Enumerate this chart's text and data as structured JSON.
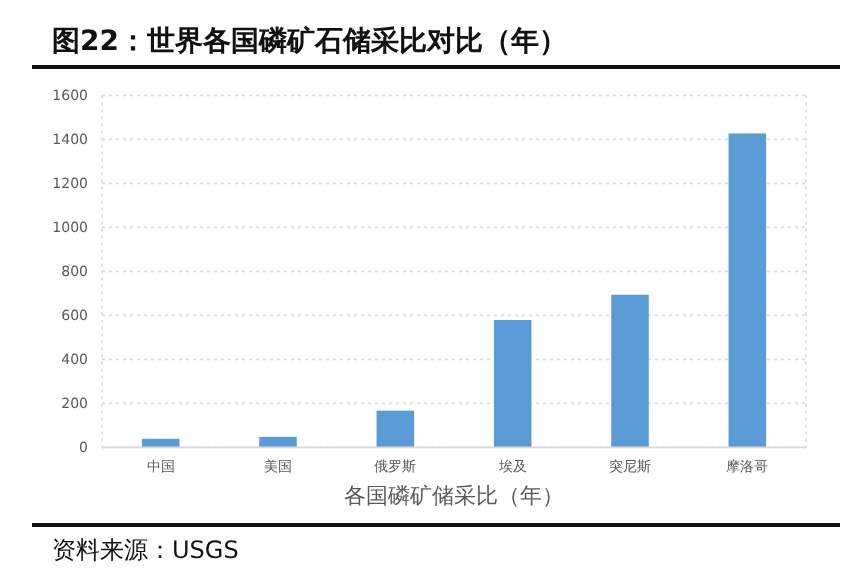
{
  "chart_data": {
    "type": "bar",
    "title": "图22：世界各国磷矿石储采比对比（年）",
    "xlabel": "各国磷矿储采比（年）",
    "categories": [
      "中国",
      "美国",
      "俄罗斯",
      "埃及",
      "突尼斯",
      "摩洛哥"
    ],
    "values": [
      39,
      48,
      167,
      579,
      694,
      1427
    ],
    "color": "#5b9bd5",
    "ylim": [
      0,
      1600
    ],
    "yticks": [
      0,
      200,
      400,
      600,
      800,
      1000,
      1200,
      1400,
      1600
    ],
    "grid": "y",
    "annotations": [
      "资料来源：USGS"
    ]
  }
}
